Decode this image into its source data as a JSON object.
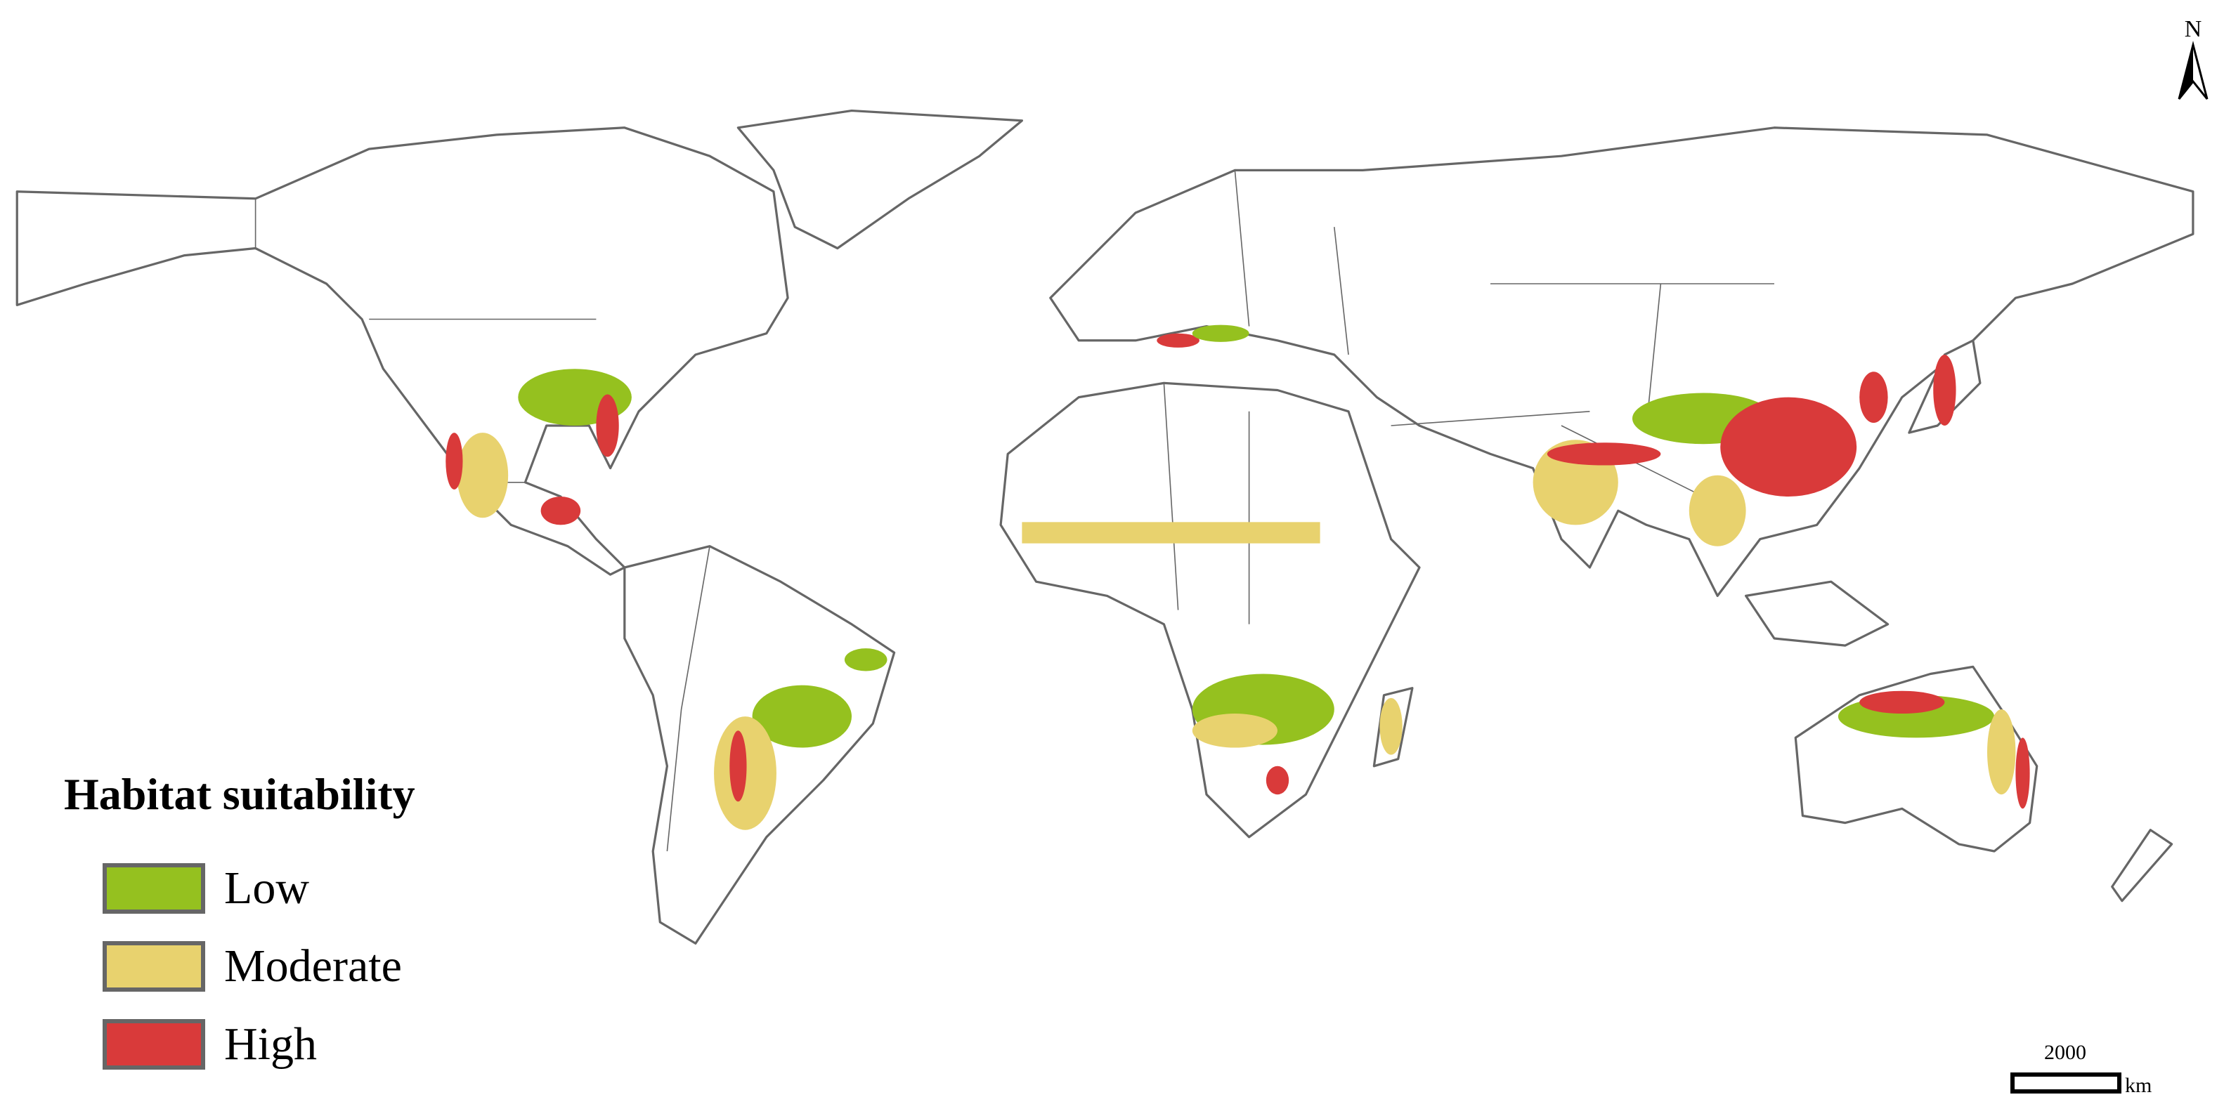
{
  "legend": {
    "title": "Habitat suitability",
    "items": [
      {
        "label": "Low",
        "color": "#95c11f"
      },
      {
        "label": "Moderate",
        "color": "#e8d26e"
      },
      {
        "label": "High",
        "color": "#d93a3a"
      }
    ]
  },
  "north_arrow": {
    "label": "N"
  },
  "scale_bar": {
    "value": "2000",
    "unit": "km"
  }
}
